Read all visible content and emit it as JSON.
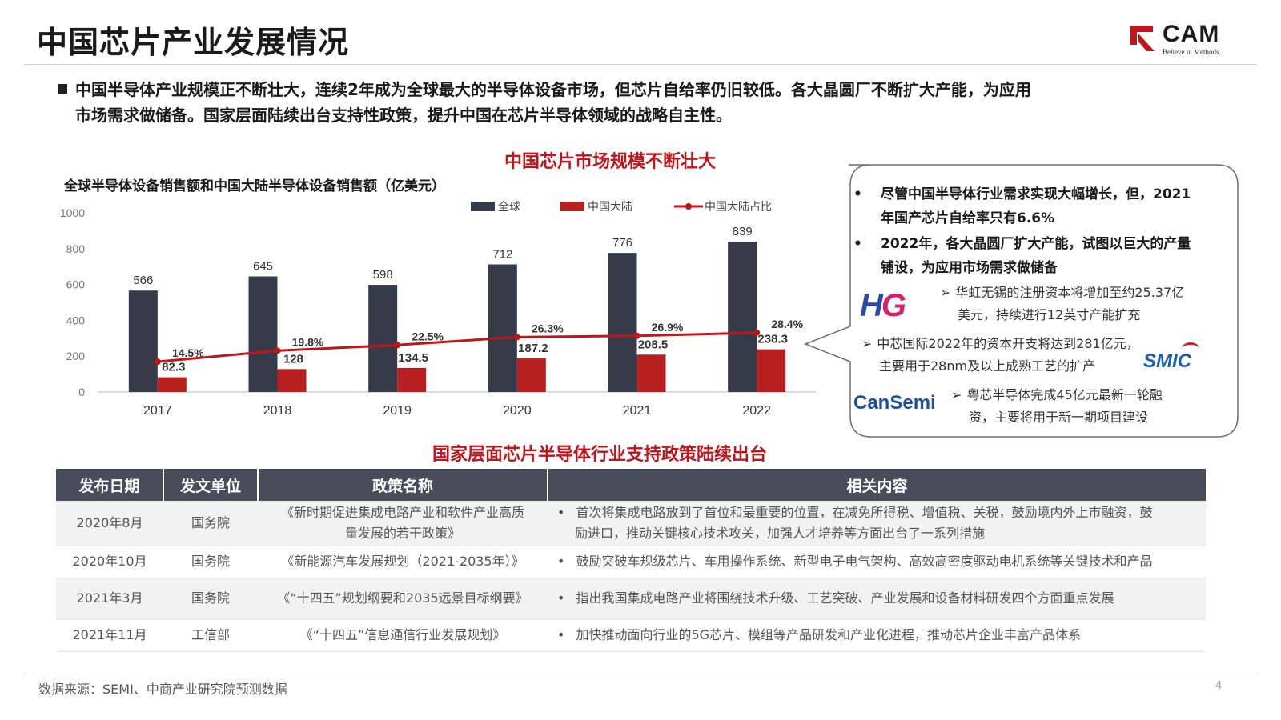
{
  "header": {
    "title": "中国芯片产业发展情况",
    "logo_text": "CAM",
    "logo_tagline": "Believe in Methods"
  },
  "intro": {
    "line1": "中国半导体产业规模正不断壮大，连续2年成为全球最大的半导体设备市场，但芯片自给率仍旧较低。各大晶圆厂不断扩大产能，为应用",
    "line2": "市场需求做储备。国家层面陆续出台支持性政策，提升中国在芯片半导体领域的战略自主性。"
  },
  "chart_section_title": "中国芯片市场规模不断壮大",
  "chart_data": {
    "type": "bar",
    "title": "全球半导体设备销售额和中国大陆半导体设备销售额（亿美元）",
    "categories": [
      "2017",
      "2018",
      "2019",
      "2020",
      "2021",
      "2022"
    ],
    "series": [
      {
        "name": "全球",
        "values": [
          566,
          645,
          598,
          712,
          776,
          839
        ],
        "labels": [
          "566",
          "645",
          "598",
          "712",
          "776",
          "839"
        ],
        "color": "#353b48"
      },
      {
        "name": "中国大陆",
        "values": [
          82.3,
          128,
          134.5,
          187.2,
          208.5,
          238.3
        ],
        "labels": [
          "82.3",
          "128",
          "134.5",
          "187.2",
          "208.5",
          "238.3"
        ],
        "color": "#b8201f"
      }
    ],
    "line_series": {
      "name": "中国大陆占比",
      "values": [
        14.5,
        19.8,
        22.5,
        26.3,
        26.9,
        28.4
      ],
      "labels": [
        "14.5%",
        "19.8%",
        "22.5%",
        "26.3%",
        "26.9%",
        "28.4%"
      ],
      "color": "#c0151b"
    },
    "ylim": [
      0,
      1000
    ],
    "yticks": [
      "0",
      "200",
      "400",
      "600",
      "800",
      "1000"
    ],
    "line_scale_max": 100,
    "legend_position": "top-right",
    "grid": false
  },
  "callout": {
    "bullet1": "尽管中国半导体行业需求实现大幅增长，但，2021年国产芯片自给率只有6.6%",
    "bullet2": "2022年，各大晶圆厂扩大产能，试图以巨大的产量铺设，为应用市场需求做储备",
    "sub1_l1": "华虹无锡的注册资本将增加至约25.37亿",
    "sub1_l2": "美元，持续进行12英寸产能扩充",
    "sub2_l1": "中芯国际2022年的资本开支将达到281亿元，",
    "sub2_l2": "主要用于28nm及以上成熟工艺的扩产",
    "sub3_l1": "粤芯半导体完成45亿元最新一轮融",
    "sub3_l2": "资，主要将用于新一期项目建设",
    "logo_hg_h": "H",
    "logo_hg_g": "G",
    "logo_smic": "SMIC",
    "logo_cansemi": "CanSemi"
  },
  "policy_section_title": "国家层面芯片半导体行业支持政策陆续出台",
  "policy_table": {
    "headers": [
      "发布日期",
      "发文单位",
      "政策名称",
      "相关内容"
    ],
    "rows": [
      {
        "date": "2020年8月",
        "unit": "国务院",
        "name_l1": "《新时期促进集成电路产业和软件产业高质",
        "name_l2": "量发展的若干政策》",
        "content_l1": "首次将集成电路放到了首位和最重要的位置，在减免所得税、增值税、关税，鼓励境内外上市融资，鼓",
        "content_l2": "励进口，推动关键核心技术攻关，加强人才培养等方面出台了一系列措施"
      },
      {
        "date": "2020年10月",
        "unit": "国务院",
        "name_l1": "《新能源汽车发展规划（2021-2035年）》",
        "name_l2": "",
        "content_l1": "鼓励突破车规级芯片、车用操作系统、新型电子电气架构、高效高密度驱动电机系统等关键技术和产品",
        "content_l2": ""
      },
      {
        "date": "2021年3月",
        "unit": "国务院",
        "name_l1": "《“十四五”规划纲要和2035远景目标纲要》",
        "name_l2": "",
        "content_l1": "指出我国集成电路产业将围绕技术升级、工艺突破、产业发展和设备材料研发四个方面重点发展",
        "content_l2": ""
      },
      {
        "date": "2021年11月",
        "unit": "工信部",
        "name_l1": "《“十四五”信息通信行业发展规划》",
        "name_l2": "",
        "content_l1": "加快推动面向行业的5G芯片、模组等产品研发和产业化进程，推动芯片企业丰富产品体系",
        "content_l2": ""
      }
    ]
  },
  "footer": {
    "source": "数据来源：SEMI、中商产业研究院预测数据",
    "page_number": "4"
  }
}
